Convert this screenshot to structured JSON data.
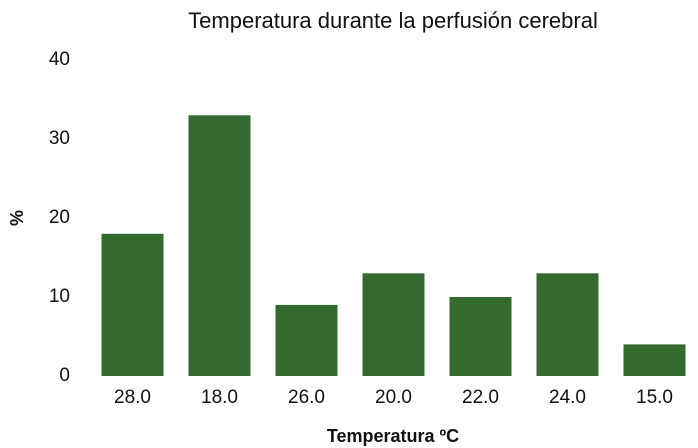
{
  "chart_data": {
    "type": "bar",
    "title": "Temperatura durante la perfusión cerebral",
    "x_label": "Temperatura ºC",
    "y_label": "%",
    "categories": [
      "28.0",
      "18.0",
      "26.0",
      "20.0",
      "22.0",
      "24.0",
      "15.0"
    ],
    "values": [
      18,
      33,
      9,
      13,
      10,
      13,
      4
    ],
    "color": "#356a2f",
    "ylim": [
      0,
      40
    ],
    "yticks": [
      0,
      10,
      20,
      30,
      40
    ],
    "grid": false
  }
}
